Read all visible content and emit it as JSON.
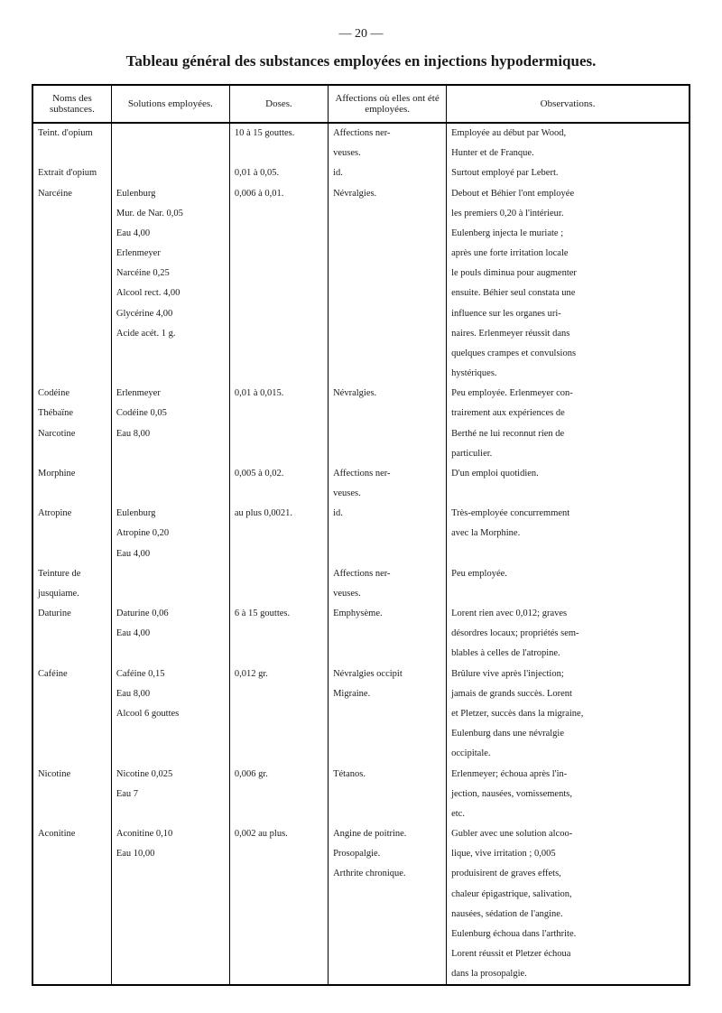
{
  "page_number": "— 20 —",
  "title": "Tableau général des substances employées en injections hypodermiques.",
  "columns": [
    "Noms des substances.",
    "Solutions employées.",
    "Doses.",
    "Affections où elles ont été employées.",
    "Observations."
  ],
  "rows": [
    {
      "nom": "Teint. d'opium",
      "solution": "",
      "dose": "10 à 15 gouttes.",
      "affection": "Affections ner-",
      "obs": "Employée au début par Wood,"
    },
    {
      "nom": "",
      "solution": "",
      "dose": "",
      "affection": "veuses.",
      "obs": "Hunter et de Franque."
    },
    {
      "nom": "Extrait d'opium",
      "solution": "",
      "dose": "0,01 à 0,05.",
      "affection": "id.",
      "obs": "Surtout employé par Lebert."
    },
    {
      "nom": "Narcéine",
      "solution": "Eulenburg",
      "dose": "0,006 à 0,01.",
      "affection": "Névralgies.",
      "obs": "Debout et Béhier l'ont employée"
    },
    {
      "nom": "",
      "solution": "Mur. de Nar. 0,05",
      "dose": "",
      "affection": "",
      "obs": "les premiers 0,20 à l'intérieur."
    },
    {
      "nom": "",
      "solution": "Eau 4,00",
      "dose": "",
      "affection": "",
      "obs": "Eulenberg injecta le muriate ;"
    },
    {
      "nom": "",
      "solution": "Erlenmeyer",
      "dose": "",
      "affection": "",
      "obs": "après une forte irritation locale"
    },
    {
      "nom": "",
      "solution": "Narcéine 0,25",
      "dose": "",
      "affection": "",
      "obs": "le pouls diminua pour augmenter"
    },
    {
      "nom": "",
      "solution": "Alcool rect. 4,00",
      "dose": "",
      "affection": "",
      "obs": "ensuite. Béhier seul constata une"
    },
    {
      "nom": "",
      "solution": "Glycérine 4,00",
      "dose": "",
      "affection": "",
      "obs": "influence sur les organes uri-"
    },
    {
      "nom": "",
      "solution": "Acide acét. 1 g.",
      "dose": "",
      "affection": "",
      "obs": "naires. Erlenmeyer réussit dans"
    },
    {
      "nom": "",
      "solution": "",
      "dose": "",
      "affection": "",
      "obs": "quelques crampes et convulsions"
    },
    {
      "nom": "",
      "solution": "",
      "dose": "",
      "affection": "",
      "obs": "hystériques."
    },
    {
      "nom": "Codéine",
      "solution": "Erlenmeyer",
      "dose": "0,01 à 0,015.",
      "affection": "Névralgies.",
      "obs": "Peu employée. Erlenmeyer con-"
    },
    {
      "nom": "Thébaïne",
      "solution": "Codéine 0,05",
      "dose": "",
      "affection": "",
      "obs": "trairement aux expériences de"
    },
    {
      "nom": "Narcotine",
      "solution": "Eau 8,00",
      "dose": "",
      "affection": "",
      "obs": "Berthé ne lui reconnut rien de"
    },
    {
      "nom": "",
      "solution": "",
      "dose": "",
      "affection": "",
      "obs": "particulier."
    },
    {
      "nom": "Morphine",
      "solution": "",
      "dose": "0,005 à 0,02.",
      "affection": "Affections ner-",
      "obs": "D'un emploi quotidien."
    },
    {
      "nom": "",
      "solution": "",
      "dose": "",
      "affection": "veuses.",
      "obs": ""
    },
    {
      "nom": "Atropine",
      "solution": "Eulenburg",
      "dose": "au plus 0,0021.",
      "affection": "id.",
      "obs": "Très-employée concurremment"
    },
    {
      "nom": "",
      "solution": "Atropine 0,20",
      "dose": "",
      "affection": "",
      "obs": "avec la Morphine."
    },
    {
      "nom": "",
      "solution": "Eau 4,00",
      "dose": "",
      "affection": "",
      "obs": ""
    },
    {
      "nom": "Teinture de",
      "solution": "",
      "dose": "",
      "affection": "Affections ner-",
      "obs": "Peu employée."
    },
    {
      "nom": "jusquiame.",
      "solution": "",
      "dose": "",
      "affection": "veuses.",
      "obs": ""
    },
    {
      "nom": "Daturine",
      "solution": "Daturine 0,06",
      "dose": "6 à 15 gouttes.",
      "affection": "Emphysème.",
      "obs": "Lorent rien avec 0,012; graves"
    },
    {
      "nom": "",
      "solution": "Eau 4,00",
      "dose": "",
      "affection": "",
      "obs": "désordres locaux; propriétés sem-"
    },
    {
      "nom": "",
      "solution": "",
      "dose": "",
      "affection": "",
      "obs": "blables à celles de l'atropine."
    },
    {
      "nom": "Caféine",
      "solution": "Caféine 0,15",
      "dose": "0,012 gr.",
      "affection": "Névralgies occipit",
      "obs": "Brûlure vive après l'injection;"
    },
    {
      "nom": "",
      "solution": "Eau 8,00",
      "dose": "",
      "affection": "Migraine.",
      "obs": "jamais de grands succès. Lorent"
    },
    {
      "nom": "",
      "solution": "Alcool 6 gouttes",
      "dose": "",
      "affection": "",
      "obs": "et Pletzer, succès dans la migraine,"
    },
    {
      "nom": "",
      "solution": "",
      "dose": "",
      "affection": "",
      "obs": "Eulenburg dans une névralgie"
    },
    {
      "nom": "",
      "solution": "",
      "dose": "",
      "affection": "",
      "obs": "occipitale."
    },
    {
      "nom": "Nicotine",
      "solution": "Nicotine 0,025",
      "dose": "0,006 gr.",
      "affection": "Tétanos.",
      "obs": "Erlenmeyer; échoua après l'in-"
    },
    {
      "nom": "",
      "solution": "Eau 7",
      "dose": "",
      "affection": "",
      "obs": "jection, nausées, vomissements,"
    },
    {
      "nom": "",
      "solution": "",
      "dose": "",
      "affection": "",
      "obs": "etc."
    },
    {
      "nom": "Aconitine",
      "solution": "Aconitine 0,10",
      "dose": "0,002 au plus.",
      "affection": "Angine de poitrine.",
      "obs": "Gubler avec une solution alcoo-"
    },
    {
      "nom": "",
      "solution": "Eau 10,00",
      "dose": "",
      "affection": "Prosopalgie.",
      "obs": "lique, vive irritation ; 0,005"
    },
    {
      "nom": "",
      "solution": "",
      "dose": "",
      "affection": "Arthrite chronique.",
      "obs": "produisirent de graves effets,"
    },
    {
      "nom": "",
      "solution": "",
      "dose": "",
      "affection": "",
      "obs": "chaleur épigastrique, salivation,"
    },
    {
      "nom": "",
      "solution": "",
      "dose": "",
      "affection": "",
      "obs": "nausées, sédation de l'angine."
    },
    {
      "nom": "",
      "solution": "",
      "dose": "",
      "affection": "",
      "obs": "Eulenburg échoua dans l'arthrite."
    },
    {
      "nom": "",
      "solution": "",
      "dose": "",
      "affection": "",
      "obs": "Lorent réussit et Pletzer échoua"
    },
    {
      "nom": "",
      "solution": "",
      "dose": "",
      "affection": "",
      "obs": "dans la prosopalgie."
    }
  ]
}
